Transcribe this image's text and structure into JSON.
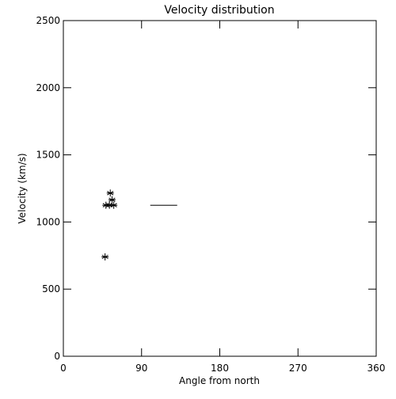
{
  "chart_data": {
    "type": "scatter",
    "title": "Velocity distribution",
    "x_label": "Angle from north",
    "y_label": "Velocity (km/s)",
    "points": {
      "x": [
        48,
        49,
        53,
        54,
        56,
        58
      ],
      "y": [
        740,
        1125,
        1125,
        1215,
        1165,
        1125
      ]
    },
    "segment": {
      "x": [
        100,
        131
      ],
      "y": [
        1125,
        1125
      ]
    },
    "marker": "asterisk",
    "color": "#000000",
    "xlim": [
      0,
      360
    ],
    "xticks": [
      0,
      90,
      180,
      270,
      360
    ],
    "ylim": [
      0,
      2500
    ],
    "yticks": [
      0,
      500,
      1000,
      1500,
      2000,
      2500
    ]
  }
}
